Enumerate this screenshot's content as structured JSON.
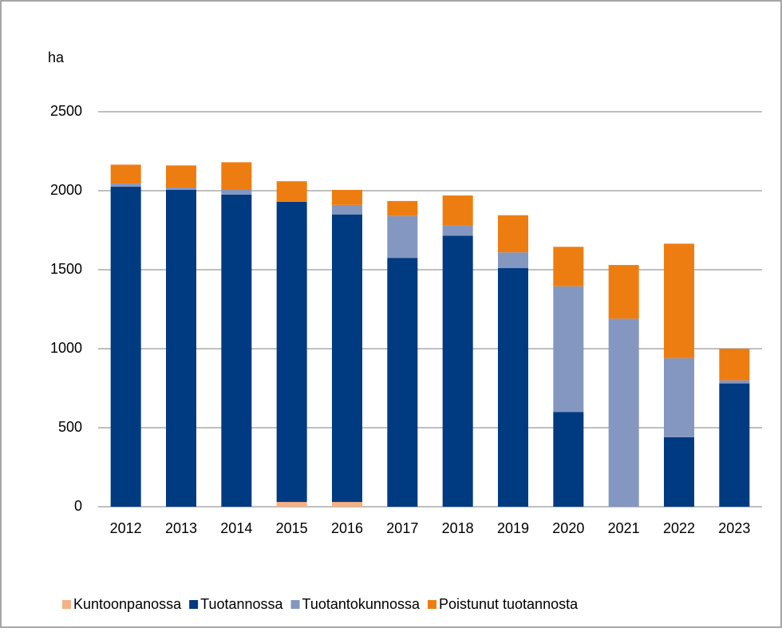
{
  "chart_data": {
    "type": "bar",
    "stacked": true,
    "y_label": "ha",
    "categories": [
      "2012",
      "2013",
      "2014",
      "2015",
      "2016",
      "2017",
      "2018",
      "2019",
      "2020",
      "2021",
      "2022",
      "2023"
    ],
    "series": [
      {
        "name": "Kuntoonpanossa",
        "color": "#f4b183",
        "values": [
          0,
          0,
          0,
          30,
          30,
          0,
          0,
          0,
          0,
          0,
          0,
          0
        ]
      },
      {
        "name": "Tuotannossa",
        "color": "#003a80",
        "values": [
          2025,
          2005,
          1975,
          1900,
          1820,
          1575,
          1715,
          1510,
          600,
          0,
          440,
          780
        ]
      },
      {
        "name": "Tuotantokunnossa",
        "color": "#8497c0",
        "values": [
          20,
          15,
          30,
          0,
          60,
          265,
          65,
          100,
          795,
          1190,
          500,
          20
        ]
      },
      {
        "name": "Poistunut tuotannosta",
        "color": "#ee7d11",
        "values": [
          120,
          140,
          175,
          130,
          95,
          95,
          190,
          235,
          250,
          340,
          725,
          200
        ]
      }
    ],
    "ylim": [
      0,
      2500
    ],
    "yticks": [
      0,
      500,
      1000,
      1500,
      2000,
      2500
    ],
    "grid": true,
    "legend": "bottom"
  }
}
